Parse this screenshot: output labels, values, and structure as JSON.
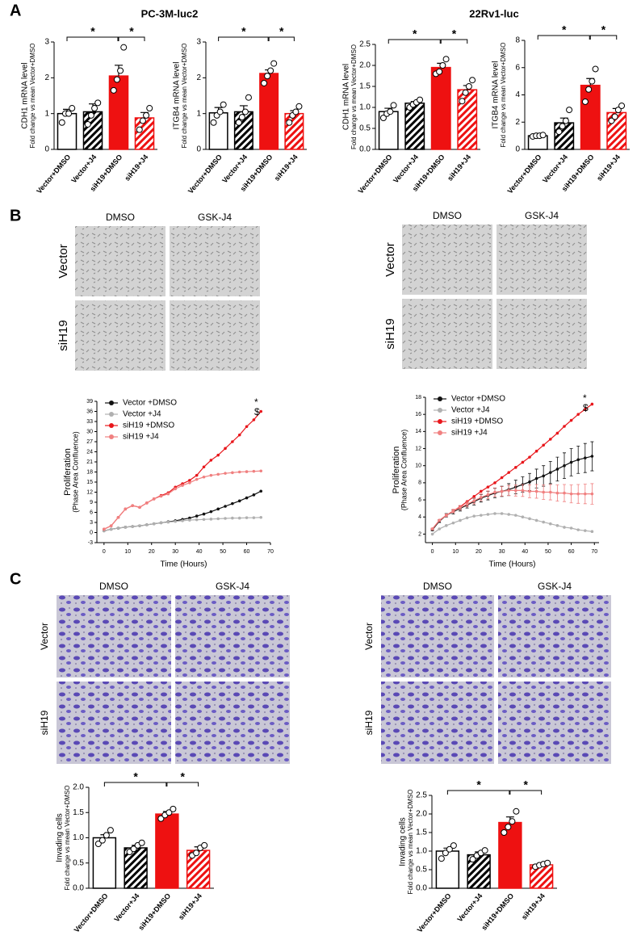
{
  "panel_labels": [
    "A",
    "B",
    "C"
  ],
  "cell_lines": [
    "PC-3M-luc2",
    "22Rv1-luc"
  ],
  "image_grids": [
    {
      "columns": [
        "DMSO",
        "GSK-J4"
      ],
      "rows": [
        "Vector",
        "siH19"
      ]
    },
    {
      "columns": [
        "DMSO",
        "GSK-J4"
      ],
      "rows": [
        "Vector",
        "siH19"
      ]
    },
    {
      "columns": [
        "DMSO",
        "GSK-J4"
      ],
      "rows": [
        "Vector",
        "siH19"
      ]
    },
    {
      "columns": [
        "DMSO",
        "GSK-J4"
      ],
      "rows": [
        "Vector",
        "siH19"
      ]
    }
  ],
  "chart_data": [
    {
      "type": "bar",
      "ylabel": "CDH1 mRNA level",
      "ylabel_sub": "Fold change vs mean Vector+DMSO",
      "categories": [
        "Vector+DMSO",
        "Vector+J4",
        "siH19+DMSO",
        "siH19+J4"
      ],
      "values": [
        1.0,
        1.05,
        2.05,
        0.88
      ],
      "errors": [
        0.12,
        0.22,
        0.3,
        0.15
      ],
      "points": [
        [
          0.75,
          1.0,
          1.0,
          1.15
        ],
        [
          0.7,
          0.95,
          1.15,
          1.3
        ],
        [
          1.65,
          1.95,
          2.2,
          2.85
        ],
        [
          0.55,
          0.8,
          0.95,
          1.15
        ]
      ],
      "colors": [
        "#ffffff",
        "#000000",
        "#ee1111",
        "#ee1111"
      ],
      "edgecolors": [
        "#000000",
        "#000000",
        "#ee1111",
        "#ee1111"
      ],
      "hatched": [
        false,
        true,
        false,
        true
      ],
      "ylim": [
        0,
        3
      ],
      "yticks": [
        0,
        1,
        2,
        3
      ],
      "annotations": [
        "*",
        "*"
      ]
    },
    {
      "type": "bar",
      "ylabel": "ITGB4 mRNA level",
      "ylabel_sub": "Fold change vs mean Vector+DMSO",
      "categories": [
        "Vector+DMSO",
        "Vector+J4",
        "siH19+DMSO",
        "siH19+J4"
      ],
      "values": [
        1.02,
        1.05,
        2.12,
        1.0
      ],
      "errors": [
        0.15,
        0.17,
        0.1,
        0.08
      ],
      "points": [
        [
          0.75,
          0.95,
          1.05,
          1.25
        ],
        [
          0.75,
          0.9,
          1.05,
          1.45
        ],
        [
          1.85,
          2.05,
          2.2,
          2.4
        ],
        [
          0.75,
          0.95,
          1.05,
          1.2
        ]
      ],
      "colors": [
        "#ffffff",
        "#000000",
        "#ee1111",
        "#ee1111"
      ],
      "edgecolors": [
        "#000000",
        "#000000",
        "#ee1111",
        "#ee1111"
      ],
      "hatched": [
        false,
        true,
        false,
        true
      ],
      "ylim": [
        0,
        3
      ],
      "yticks": [
        0,
        1,
        2,
        3
      ],
      "annotations": [
        "*",
        "*"
      ]
    },
    {
      "type": "bar",
      "ylabel": "CDH1 mRNA level",
      "ylabel_sub": "Fold change vs mean Vector+DMSO",
      "categories": [
        "Vector+DMSO",
        "Vector+J4",
        "siH19+DMSO",
        "siH19+J4"
      ],
      "values": [
        0.9,
        1.1,
        1.95,
        1.42
      ],
      "errors": [
        0.08,
        0.04,
        0.1,
        0.1
      ],
      "points": [
        [
          0.75,
          0.85,
          0.9,
          1.05
        ],
        [
          1.0,
          1.07,
          1.12,
          1.18
        ],
        [
          1.8,
          1.85,
          2.0,
          2.15
        ],
        [
          1.15,
          1.35,
          1.5,
          1.65
        ]
      ],
      "colors": [
        "#ffffff",
        "#000000",
        "#ee1111",
        "#ee1111"
      ],
      "edgecolors": [
        "#000000",
        "#000000",
        "#ee1111",
        "#ee1111"
      ],
      "hatched": [
        false,
        true,
        false,
        true
      ],
      "ylim": [
        0,
        2.5
      ],
      "yticks": [
        {
          "value": 0,
          "label": "0.0"
        },
        0.5,
        {
          "value": 1,
          "label": "1.0"
        },
        1.5,
        {
          "value": 2,
          "label": "2.0"
        },
        2.5
      ],
      "annotations": [
        "*",
        "*"
      ]
    },
    {
      "type": "bar",
      "ylabel": "ITGB4 mRNA level",
      "ylabel_sub": "Fold change vs mean Vector+DMSO",
      "categories": [
        "Vector+DMSO",
        "Vector+J4",
        "siH19+DMSO",
        "siH19+J4"
      ],
      "values": [
        1.0,
        1.95,
        4.7,
        2.7
      ],
      "errors": [
        0.05,
        0.35,
        0.5,
        0.3
      ],
      "points": [
        [
          0.95,
          1.0,
          1.0,
          1.05
        ],
        [
          1.3,
          1.7,
          2.1,
          2.9
        ],
        [
          3.5,
          4.4,
          5.0,
          5.9
        ],
        [
          2.1,
          2.4,
          2.9,
          3.2
        ]
      ],
      "colors": [
        "#ffffff",
        "#000000",
        "#ee1111",
        "#ee1111"
      ],
      "edgecolors": [
        "#000000",
        "#000000",
        "#ee1111",
        "#ee1111"
      ],
      "hatched": [
        false,
        true,
        false,
        true
      ],
      "ylim": [
        0,
        8
      ],
      "yticks": [
        0,
        2,
        4,
        6,
        8
      ],
      "annotations": [
        "*",
        "*"
      ]
    },
    {
      "type": "line",
      "ylabel": "Proliferation",
      "ylabel_sub": "(Phase Area Confluence)",
      "xlabel": "Time (Hours)",
      "x": [
        0,
        3,
        6,
        9,
        12,
        15,
        18,
        21,
        24,
        27,
        30,
        33,
        36,
        39,
        42,
        45,
        48,
        51,
        54,
        57,
        60,
        63,
        66
      ],
      "series": [
        {
          "name": "Vector +DMSO",
          "color": "#111111",
          "values": [
            0.5,
            1.0,
            1.3,
            1.6,
            1.8,
            2.0,
            2.3,
            2.6,
            2.9,
            3.2,
            3.5,
            3.9,
            4.3,
            4.9,
            5.5,
            6.2,
            7.0,
            7.8,
            8.6,
            9.4,
            10.3,
            11.2,
            12.3
          ]
        },
        {
          "name": "Vector +J4",
          "color": "#b0b0b0",
          "values": [
            0.5,
            1.0,
            1.3,
            1.6,
            1.8,
            2.0,
            2.3,
            2.6,
            2.9,
            3.1,
            3.3,
            3.5,
            3.7,
            3.8,
            3.9,
            4.0,
            4.1,
            4.2,
            4.3,
            4.3,
            4.4,
            4.4,
            4.5
          ]
        },
        {
          "name": "siH19 +DMSO",
          "color": "#e8161b",
          "values": [
            1.0,
            2.0,
            4.5,
            7.0,
            8.0,
            7.5,
            8.8,
            10.0,
            11.0,
            11.8,
            13.5,
            14.5,
            15.5,
            17.0,
            19.5,
            21.5,
            23.0,
            25.0,
            27.0,
            29.0,
            31.5,
            33.5,
            36.0
          ]
        },
        {
          "name": "siH19 +J4",
          "color": "#f08080",
          "values": [
            1.0,
            2.0,
            4.5,
            7.0,
            8.0,
            7.5,
            8.8,
            10.0,
            10.8,
            11.5,
            13.0,
            14.0,
            14.8,
            15.8,
            16.5,
            17.0,
            17.3,
            17.6,
            17.8,
            18.0,
            18.1,
            18.2,
            18.3
          ]
        }
      ],
      "xlim": [
        -3,
        70
      ],
      "xticks": [
        0,
        10,
        20,
        30,
        40,
        50,
        60,
        70
      ],
      "ylim": [
        -3,
        39
      ],
      "yticks": [
        -3,
        0,
        3,
        6,
        9,
        12,
        15,
        18,
        21,
        24,
        27,
        30,
        33,
        36,
        39
      ],
      "annotations": [
        "*",
        "$"
      ]
    },
    {
      "type": "line",
      "ylabel": "Proliferation",
      "ylabel_sub": "(Phase Area Confluence)",
      "xlabel": "Time (Hours)",
      "x": [
        0,
        3,
        6,
        9,
        12,
        15,
        18,
        21,
        24,
        27,
        30,
        33,
        36,
        39,
        42,
        45,
        48,
        51,
        54,
        57,
        60,
        63,
        66,
        69
      ],
      "series": [
        {
          "name": "Vector +DMSO",
          "color": "#111111",
          "values": [
            2.5,
            3.5,
            4.2,
            4.6,
            5.0,
            5.4,
            5.8,
            6.2,
            6.5,
            6.8,
            7.0,
            7.2,
            7.5,
            7.8,
            8.1,
            8.5,
            8.8,
            9.2,
            9.6,
            10.0,
            10.4,
            10.7,
            10.9,
            11.1
          ],
          "errors": [
            0.1,
            0.15,
            0.2,
            0.25,
            0.3,
            0.35,
            0.4,
            0.45,
            0.5,
            0.55,
            0.6,
            0.7,
            0.8,
            0.9,
            1.0,
            1.1,
            1.2,
            1.3,
            1.4,
            1.5,
            1.6,
            1.6,
            1.7,
            1.7
          ]
        },
        {
          "name": "Vector +J4",
          "color": "#b0b0b0",
          "values": [
            2.0,
            2.6,
            3.0,
            3.3,
            3.6,
            3.9,
            4.1,
            4.2,
            4.3,
            4.4,
            4.4,
            4.3,
            4.2,
            4.0,
            3.8,
            3.6,
            3.4,
            3.2,
            3.0,
            2.8,
            2.7,
            2.5,
            2.4,
            2.3
          ]
        },
        {
          "name": "siH19 +DMSO",
          "color": "#e8161b",
          "values": [
            2.6,
            3.6,
            4.2,
            4.7,
            5.2,
            5.8,
            6.4,
            7.0,
            7.5,
            8.0,
            8.6,
            9.2,
            9.8,
            10.4,
            11.0,
            11.7,
            12.4,
            13.1,
            13.8,
            14.6,
            15.3,
            16.0,
            16.6,
            17.2
          ]
        },
        {
          "name": "siH19 +J4",
          "color": "#f08080",
          "values": [
            2.6,
            3.6,
            4.2,
            4.7,
            5.1,
            5.5,
            5.9,
            6.3,
            6.6,
            6.9,
            7.0,
            7.1,
            7.1,
            7.1,
            7.0,
            7.0,
            6.9,
            6.9,
            6.8,
            6.8,
            6.7,
            6.7,
            6.7,
            6.7
          ],
          "errors": [
            0.1,
            0.1,
            0.15,
            0.2,
            0.25,
            0.3,
            0.35,
            0.4,
            0.45,
            0.5,
            0.55,
            0.6,
            0.65,
            0.7,
            0.75,
            0.8,
            0.85,
            0.9,
            0.95,
            1.0,
            1.05,
            1.1,
            1.15,
            1.2
          ]
        }
      ],
      "xlim": [
        -3,
        72
      ],
      "xticks": [
        0,
        10,
        20,
        30,
        40,
        50,
        60,
        70
      ],
      "ylim": [
        1,
        18
      ],
      "yticks": [
        2,
        4,
        6,
        8,
        10,
        12,
        14,
        16,
        18
      ],
      "annotations": [
        "*",
        "$"
      ]
    },
    {
      "type": "bar",
      "ylabel": "Invading cells",
      "ylabel_sub": "Fold change vs mean Vector+DMSO",
      "categories": [
        "Vector+DMSO",
        "Vector+J4",
        "siH19+DMSO",
        "siH19+J4"
      ],
      "values": [
        1.0,
        0.8,
        1.47,
        0.75
      ],
      "errors": [
        0.06,
        0.05,
        0.05,
        0.07
      ],
      "points": [
        [
          0.88,
          0.95,
          1.05,
          1.15
        ],
        [
          0.72,
          0.78,
          0.85,
          0.9
        ],
        [
          1.38,
          1.45,
          1.5,
          1.57
        ],
        [
          0.65,
          0.7,
          0.8,
          0.85
        ]
      ],
      "colors": [
        "#ffffff",
        "#000000",
        "#ee1111",
        "#ee1111"
      ],
      "edgecolors": [
        "#000000",
        "#000000",
        "#ee1111",
        "#ee1111"
      ],
      "hatched": [
        false,
        true,
        false,
        true
      ],
      "ylim": [
        0,
        2
      ],
      "yticks": [
        {
          "value": 0,
          "label": "0.0"
        },
        0.5,
        {
          "value": 1,
          "label": "1.0"
        },
        1.5,
        {
          "value": 2,
          "label": "2.0"
        }
      ],
      "annotations": [
        "*",
        "*"
      ]
    },
    {
      "type": "bar",
      "ylabel": "Invading cells",
      "ylabel_sub": "Fold change vs mean Vector+DMSO",
      "categories": [
        "Vector+DMSO",
        "Vector+J4",
        "siH19+DMSO",
        "siH19+J4"
      ],
      "values": [
        1.0,
        0.9,
        1.77,
        0.63
      ],
      "errors": [
        0.08,
        0.08,
        0.15,
        0.04
      ],
      "points": [
        [
          0.8,
          0.95,
          1.05,
          1.15
        ],
        [
          0.78,
          0.88,
          0.95,
          1.02
        ],
        [
          1.5,
          1.65,
          1.8,
          2.07
        ],
        [
          0.58,
          0.62,
          0.65,
          0.68
        ]
      ],
      "colors": [
        "#ffffff",
        "#000000",
        "#ee1111",
        "#ee1111"
      ],
      "edgecolors": [
        "#000000",
        "#000000",
        "#ee1111",
        "#ee1111"
      ],
      "hatched": [
        false,
        true,
        false,
        true
      ],
      "ylim": [
        0,
        2.5
      ],
      "yticks": [
        {
          "value": 0,
          "label": "0.0"
        },
        0.5,
        {
          "value": 1,
          "label": "1.0"
        },
        1.5,
        {
          "value": 2,
          "label": "2.0"
        },
        2.5
      ],
      "annotations": [
        "*",
        "*"
      ]
    }
  ]
}
